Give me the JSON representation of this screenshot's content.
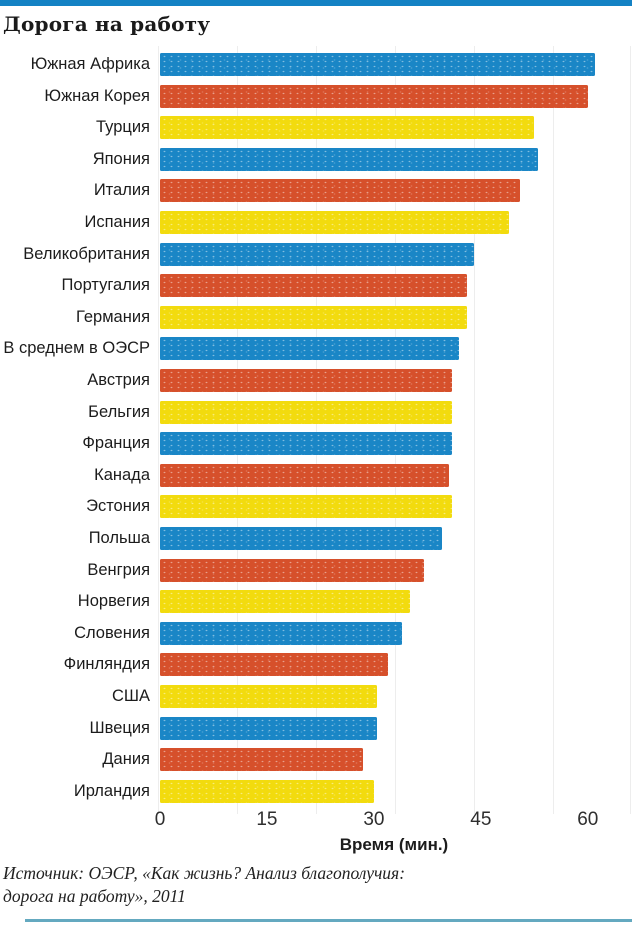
{
  "page": {
    "title": "Дорога на работу"
  },
  "source": {
    "line1": "Источник: ОЭСР, «Как жизнь? Анализ благополучия:",
    "line2": "дорога на работу», 2011"
  },
  "colors": {
    "top_accent_bar": "#1482c4",
    "bottom_accent_bar": "#64a9c0",
    "bar_blue": "#1a86c6",
    "bar_orange": "#d6502b",
    "bar_yellow": "#f2db0e"
  },
  "chart_data": {
    "type": "bar",
    "orientation": "horizontal",
    "title": "Дорога на работу",
    "xlabel": "Время (мин.)",
    "x_ticks": [
      0,
      15,
      30,
      45,
      60
    ],
    "xlim": [
      0,
      66
    ],
    "grid": "faint-vertical",
    "legend": "none",
    "categories": [
      "Южная Африка",
      "Южная Корея",
      "Турция",
      "Япония",
      "Италия",
      "Испания",
      "Великобритания",
      "Португалия",
      "Германия",
      "В среднем в ОЭСР",
      "Австрия",
      "Бельгия",
      "Франция",
      "Канада",
      "Эстония",
      "Польша",
      "Венгрия",
      "Норвегия",
      "Словения",
      "Финляндия",
      "США",
      "Швеция",
      "Дания",
      "Ирландия"
    ],
    "values": [
      61,
      60,
      52.5,
      53,
      50.5,
      49,
      44,
      43,
      43,
      42,
      41,
      41,
      41,
      40.5,
      41,
      39.5,
      37,
      35,
      34,
      32,
      30.5,
      30.5,
      28.5,
      30
    ],
    "bar_color_cycle": [
      "#1a86c6",
      "#d6502b",
      "#f2db0e"
    ],
    "bar_color_cycle_names": [
      "blue",
      "orange",
      "yellow"
    ]
  }
}
